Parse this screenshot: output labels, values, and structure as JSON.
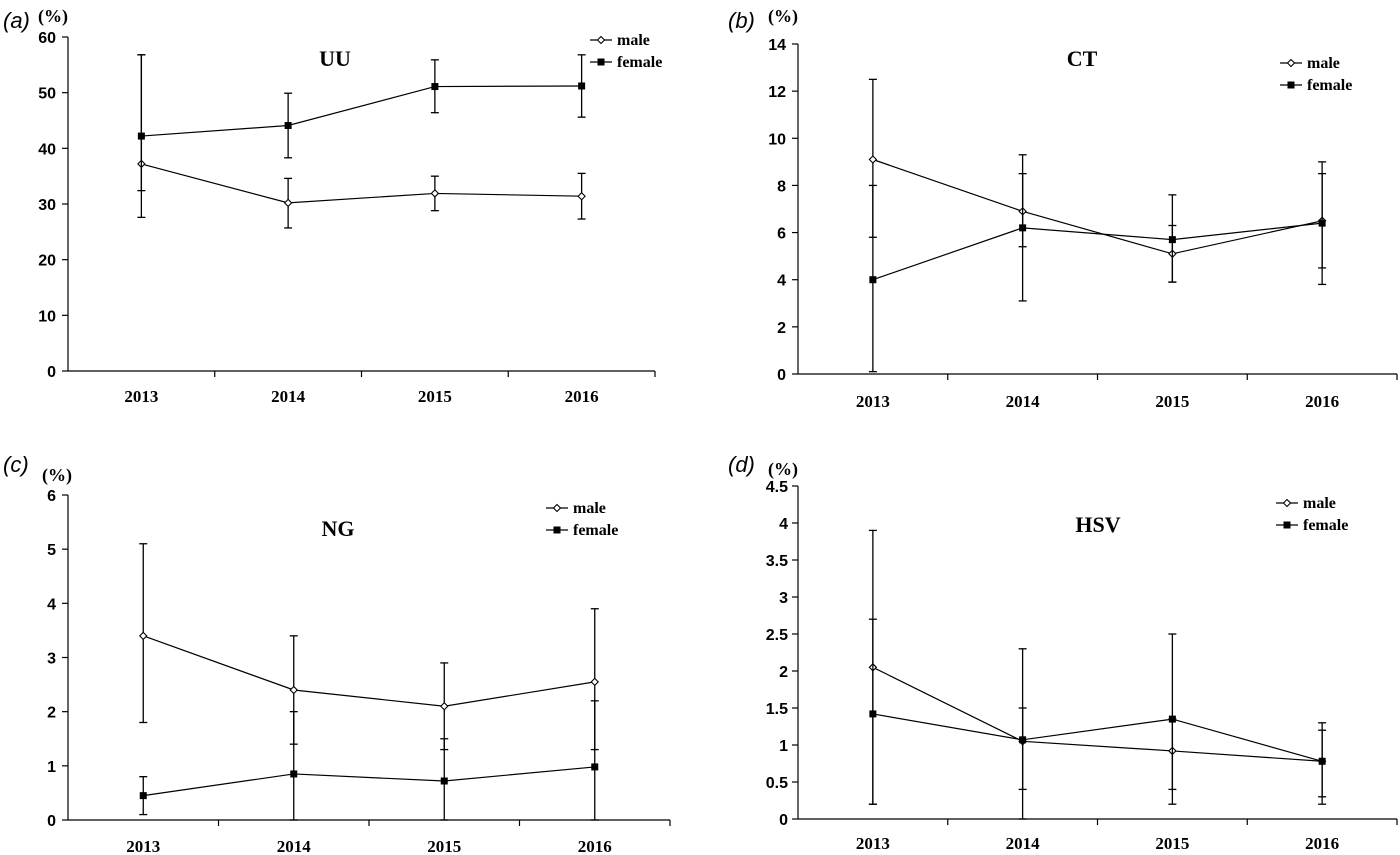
{
  "chart_data": [
    {
      "panel_label": "(a)",
      "type": "line",
      "title": "UU",
      "ylabel": "(%)",
      "categories": [
        "2013",
        "2014",
        "2015",
        "2016"
      ],
      "ylim": [
        0,
        60
      ],
      "yticks": [
        "0",
        "10",
        "20",
        "30",
        "40",
        "50",
        "60"
      ],
      "legend_position": "top-right",
      "series": [
        {
          "name": "male",
          "marker": "open-diamond",
          "values": [
            37.2,
            30.2,
            31.9,
            31.4
          ],
          "err_low": [
            27.6,
            25.7,
            28.8,
            27.3
          ],
          "err_high": [
            56.8,
            34.6,
            35.0,
            35.5
          ]
        },
        {
          "name": "female",
          "marker": "filled-square",
          "values": [
            42.2,
            44.1,
            51.1,
            51.2
          ],
          "err_low": [
            32.4,
            38.3,
            46.4,
            45.6
          ],
          "err_high": [
            56.8,
            49.9,
            55.9,
            56.8
          ]
        }
      ]
    },
    {
      "panel_label": "(b)",
      "type": "line",
      "title": "CT",
      "ylabel": "(%)",
      "categories": [
        "2013",
        "2014",
        "2015",
        "2016"
      ],
      "ylim": [
        0,
        14
      ],
      "yticks": [
        "0",
        "2",
        "4",
        "6",
        "8",
        "10",
        "12",
        "14"
      ],
      "legend_position": "top-right",
      "series": [
        {
          "name": "male",
          "marker": "open-diamond",
          "values": [
            9.1,
            6.9,
            5.1,
            6.5
          ],
          "err_low": [
            5.8,
            5.4,
            3.9,
            4.5
          ],
          "err_high": [
            12.5,
            9.3,
            6.3,
            9.0
          ]
        },
        {
          "name": "female",
          "marker": "filled-square",
          "values": [
            4.0,
            6.2,
            5.7,
            6.4
          ],
          "err_low": [
            0.1,
            3.1,
            3.9,
            3.8
          ],
          "err_high": [
            8.0,
            8.5,
            7.6,
            8.5
          ]
        }
      ]
    },
    {
      "panel_label": "(c)",
      "type": "line",
      "title": "NG",
      "ylabel": "(%)",
      "categories": [
        "2013",
        "2014",
        "2015",
        "2016"
      ],
      "ylim": [
        0,
        6
      ],
      "yticks": [
        "0",
        "1",
        "2",
        "3",
        "4",
        "5",
        "6"
      ],
      "legend_position": "top-right",
      "series": [
        {
          "name": "male",
          "marker": "open-diamond",
          "values": [
            3.4,
            2.4,
            2.1,
            2.55
          ],
          "err_low": [
            1.8,
            1.4,
            1.3,
            1.3
          ],
          "err_high": [
            5.1,
            3.4,
            2.9,
            3.9
          ]
        },
        {
          "name": "female",
          "marker": "filled-square",
          "values": [
            0.45,
            0.85,
            0.72,
            0.98
          ],
          "err_low": [
            0.1,
            0.0,
            0.0,
            0.0
          ],
          "err_high": [
            0.8,
            2.0,
            1.5,
            2.2
          ]
        }
      ]
    },
    {
      "panel_label": "(d)",
      "type": "line",
      "title": "HSV",
      "ylabel": "(%)",
      "categories": [
        "2013",
        "2014",
        "2015",
        "2016"
      ],
      "ylim": [
        0,
        4.5
      ],
      "yticks": [
        "0",
        "0.5",
        "1",
        "1.5",
        "2",
        "2.5",
        "3",
        "3.5",
        "4",
        "4.5"
      ],
      "legend_position": "top-right",
      "series": [
        {
          "name": "male",
          "marker": "open-diamond",
          "values": [
            2.05,
            1.05,
            0.92,
            0.78
          ],
          "err_low": [
            0.2,
            0.0,
            0.2,
            0.2
          ],
          "err_high": [
            3.9,
            1.5,
            1.35,
            1.2
          ]
        },
        {
          "name": "female",
          "marker": "filled-square",
          "values": [
            1.42,
            1.07,
            1.35,
            0.78
          ],
          "err_low": [
            0.2,
            0.4,
            0.4,
            0.3
          ],
          "err_high": [
            2.7,
            2.3,
            2.5,
            1.3
          ]
        }
      ]
    }
  ]
}
